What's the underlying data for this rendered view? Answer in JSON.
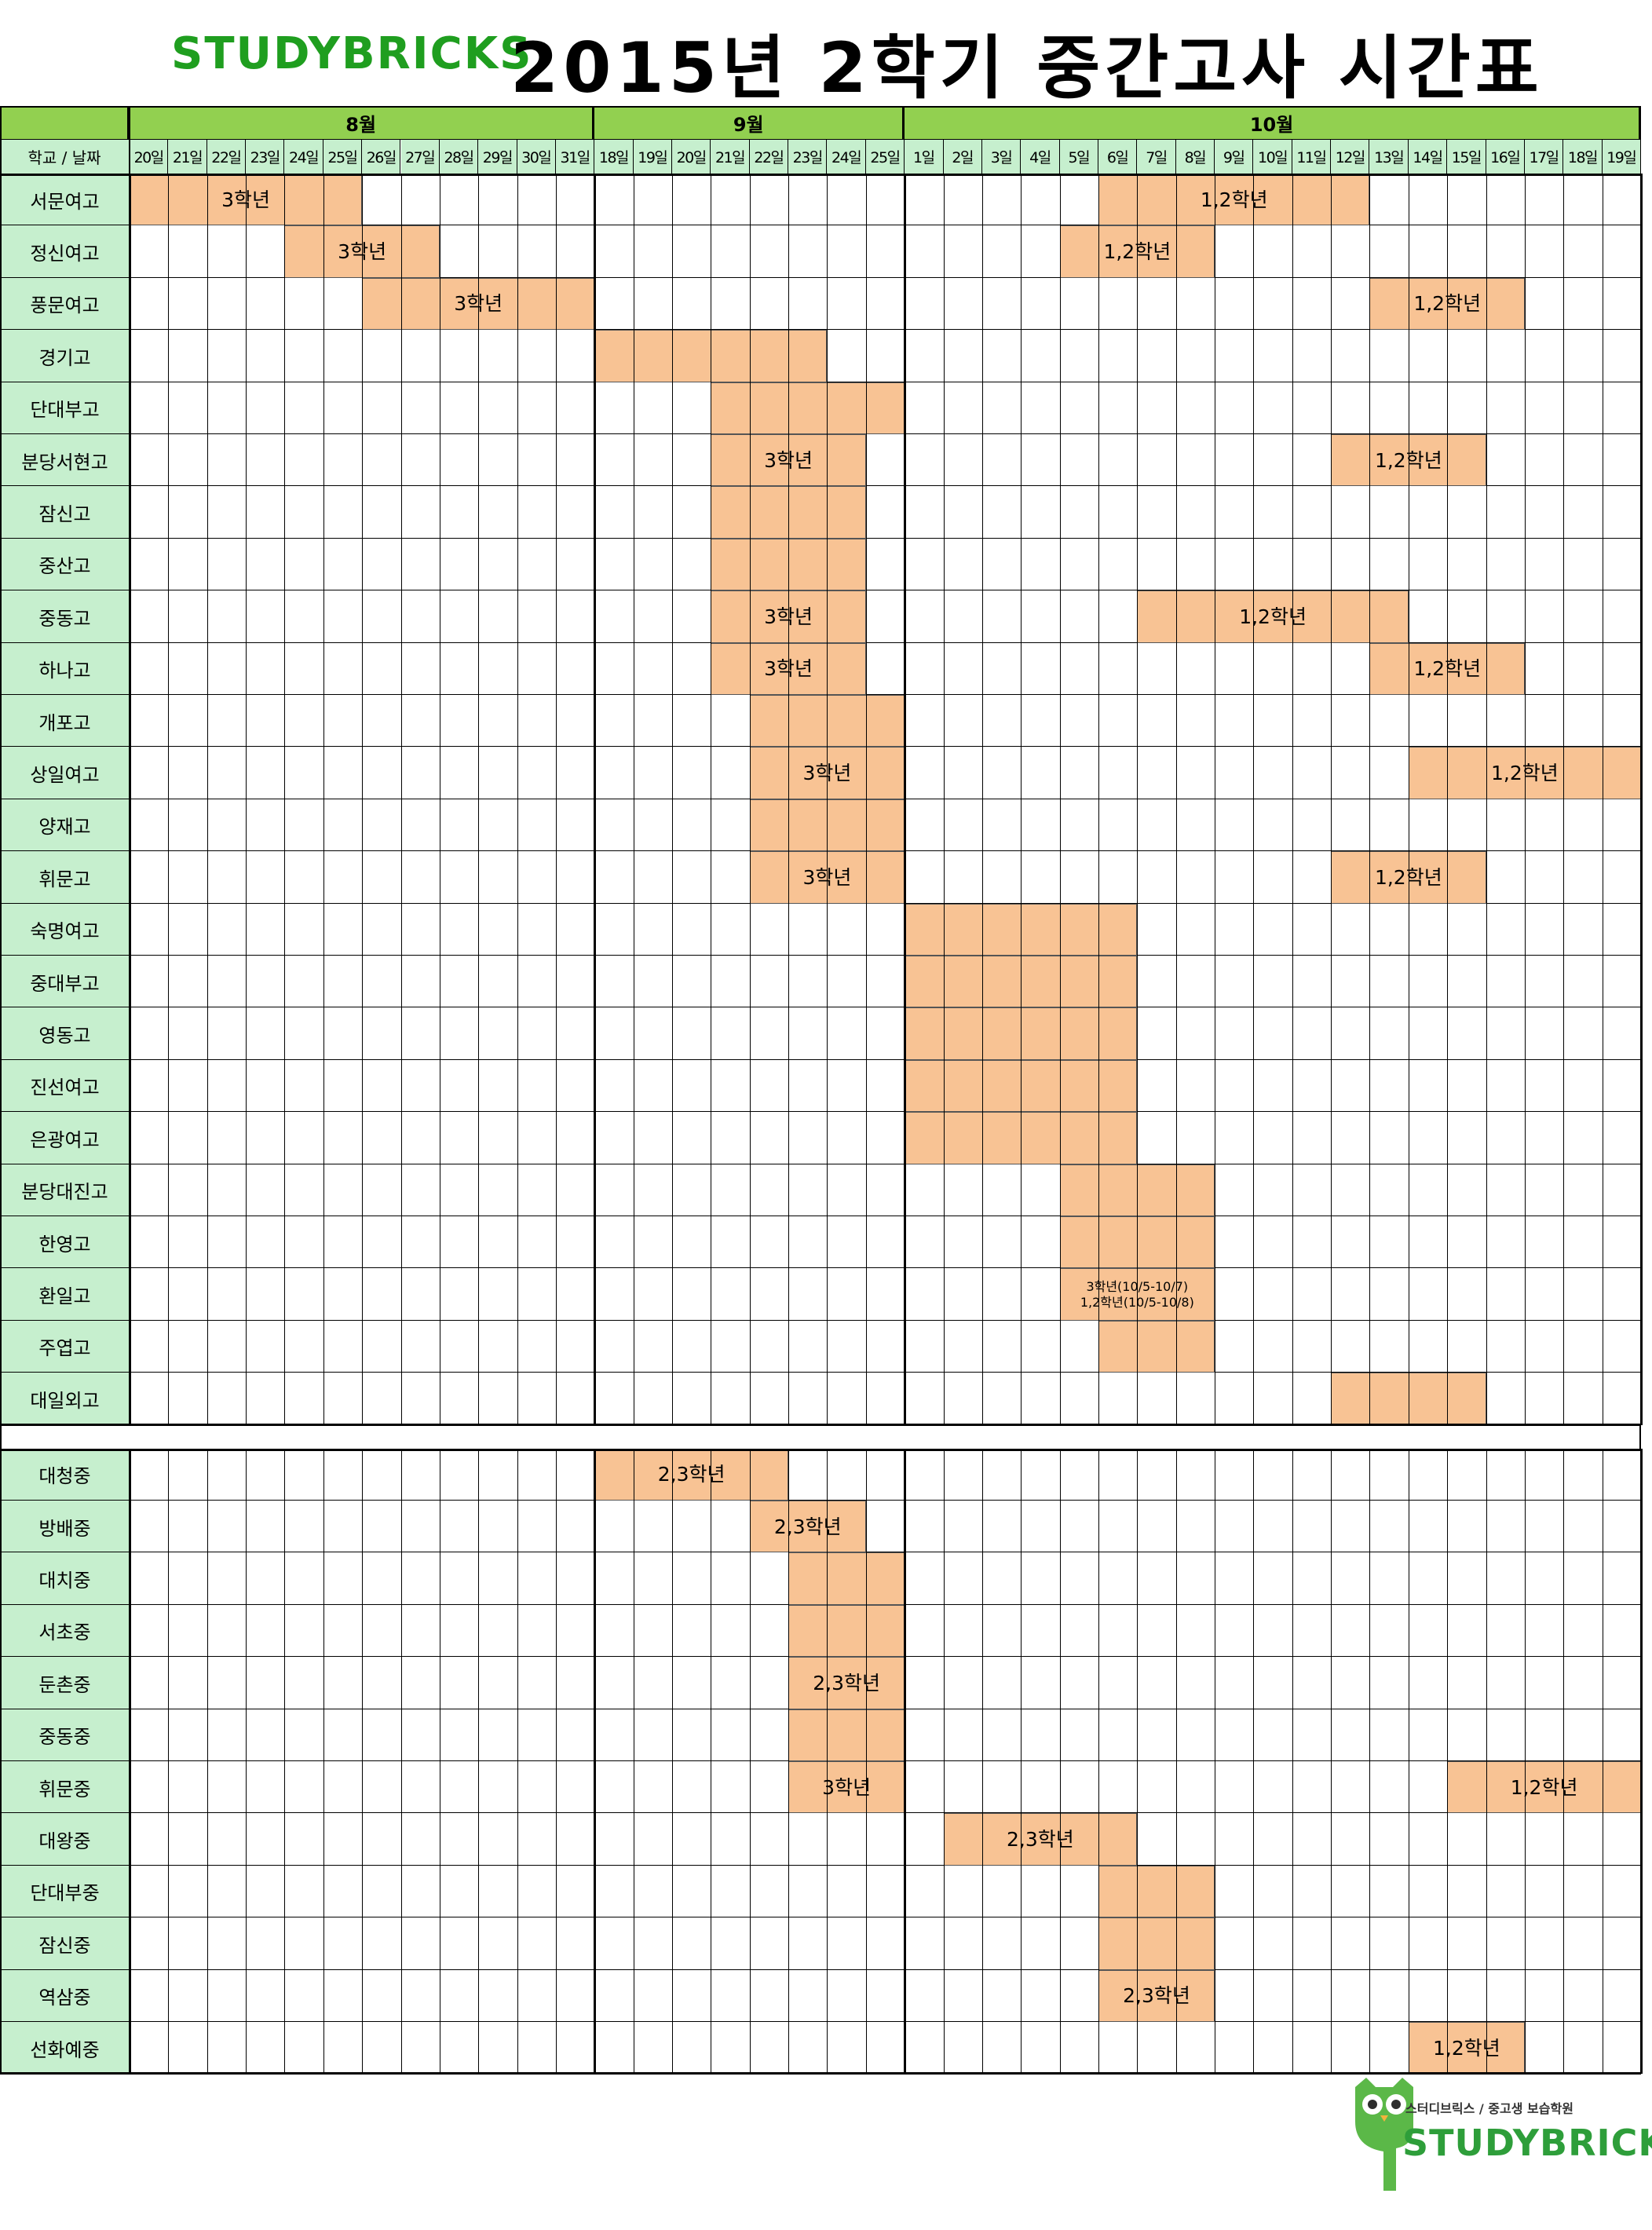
{
  "header": {
    "brand": "STUDYBRICKS",
    "title": "2015년 2학기 중간고사 시간표"
  },
  "corner_label": "학교 / 날짜",
  "months": [
    {
      "label": "8월",
      "days": [
        "20일",
        "21일",
        "22일",
        "23일",
        "24일",
        "25일",
        "26일",
        "27일",
        "28일",
        "29일",
        "30일",
        "31일"
      ]
    },
    {
      "label": "9월",
      "days": [
        "18일",
        "19일",
        "20일",
        "21일",
        "22일",
        "23일",
        "24일",
        "25일"
      ]
    },
    {
      "label": "10월",
      "days": [
        "1일",
        "2일",
        "3일",
        "4일",
        "5일",
        "6일",
        "7일",
        "8일",
        "9일",
        "10일",
        "11일",
        "12일",
        "13일",
        "14일",
        "15일",
        "16일",
        "17일",
        "18일",
        "19일"
      ]
    }
  ],
  "high_schools": [
    {
      "name": "서문여고",
      "exams": [
        {
          "start": 0,
          "span": 6,
          "label": "3학년"
        },
        {
          "start": 25,
          "span": 7,
          "label": "1,2학년"
        }
      ]
    },
    {
      "name": "정신여고",
      "exams": [
        {
          "start": 4,
          "span": 4,
          "label": "3학년"
        },
        {
          "start": 24,
          "span": 4,
          "label": "1,2학년"
        }
      ]
    },
    {
      "name": "풍문여고",
      "exams": [
        {
          "start": 6,
          "span": 6,
          "label": "3학년"
        },
        {
          "start": 32,
          "span": 4,
          "label": "1,2학년"
        }
      ]
    },
    {
      "name": "경기고",
      "exams": [
        {
          "start": 12,
          "span": 6,
          "label": ""
        }
      ]
    },
    {
      "name": "단대부고",
      "exams": [
        {
          "start": 15,
          "span": 5,
          "label": ""
        }
      ]
    },
    {
      "name": "분당서현고",
      "exams": [
        {
          "start": 15,
          "span": 4,
          "label": "3학년"
        },
        {
          "start": 31,
          "span": 4,
          "label": "1,2학년"
        }
      ]
    },
    {
      "name": "잠신고",
      "exams": [
        {
          "start": 15,
          "span": 4,
          "label": ""
        }
      ]
    },
    {
      "name": "중산고",
      "exams": [
        {
          "start": 15,
          "span": 4,
          "label": ""
        }
      ]
    },
    {
      "name": "중동고",
      "exams": [
        {
          "start": 15,
          "span": 4,
          "label": "3학년"
        },
        {
          "start": 26,
          "span": 7,
          "label": "1,2학년"
        }
      ]
    },
    {
      "name": "하나고",
      "exams": [
        {
          "start": 15,
          "span": 4,
          "label": "3학년"
        },
        {
          "start": 32,
          "span": 4,
          "label": "1,2학년"
        }
      ]
    },
    {
      "name": "개포고",
      "exams": [
        {
          "start": 16,
          "span": 4,
          "label": ""
        }
      ]
    },
    {
      "name": "상일여고",
      "exams": [
        {
          "start": 16,
          "span": 4,
          "label": "3학년"
        },
        {
          "start": 33,
          "span": 6,
          "label": "1,2학년"
        }
      ]
    },
    {
      "name": "양재고",
      "exams": [
        {
          "start": 16,
          "span": 4,
          "label": ""
        }
      ]
    },
    {
      "name": "휘문고",
      "exams": [
        {
          "start": 16,
          "span": 4,
          "label": "3학년"
        },
        {
          "start": 31,
          "span": 4,
          "label": "1,2학년"
        }
      ]
    },
    {
      "name": "숙명여고",
      "exams": [
        {
          "start": 20,
          "span": 6,
          "label": ""
        }
      ]
    },
    {
      "name": "중대부고",
      "exams": [
        {
          "start": 20,
          "span": 6,
          "label": ""
        }
      ]
    },
    {
      "name": "영동고",
      "exams": [
        {
          "start": 20,
          "span": 6,
          "label": ""
        }
      ]
    },
    {
      "name": "진선여고",
      "exams": [
        {
          "start": 20,
          "span": 6,
          "label": ""
        }
      ]
    },
    {
      "name": "은광여고",
      "exams": [
        {
          "start": 20,
          "span": 6,
          "label": ""
        }
      ]
    },
    {
      "name": "분당대진고",
      "exams": [
        {
          "start": 24,
          "span": 4,
          "label": ""
        }
      ]
    },
    {
      "name": "한영고",
      "exams": [
        {
          "start": 24,
          "span": 4,
          "label": ""
        }
      ]
    },
    {
      "name": "환일고",
      "exams": [
        {
          "start": 24,
          "span": 4,
          "label": "3학년(10/5-10/7)\n1,2학년(10/5-10/8)",
          "small": true
        }
      ]
    },
    {
      "name": "주엽고",
      "exams": [
        {
          "start": 25,
          "span": 3,
          "label": ""
        }
      ]
    },
    {
      "name": "대일외고",
      "exams": [
        {
          "start": 31,
          "span": 4,
          "label": ""
        }
      ]
    }
  ],
  "middle_schools": [
    {
      "name": "대청중",
      "exams": [
        {
          "start": 12,
          "span": 5,
          "label": "2,3학년"
        }
      ]
    },
    {
      "name": "방배중",
      "exams": [
        {
          "start": 16,
          "span": 3,
          "label": "2,3학년"
        }
      ]
    },
    {
      "name": "대치중",
      "exams": [
        {
          "start": 17,
          "span": 3,
          "label": ""
        }
      ]
    },
    {
      "name": "서초중",
      "exams": [
        {
          "start": 17,
          "span": 3,
          "label": ""
        }
      ]
    },
    {
      "name": "둔촌중",
      "exams": [
        {
          "start": 17,
          "span": 3,
          "label": "2,3학년"
        }
      ]
    },
    {
      "name": "중동중",
      "exams": [
        {
          "start": 17,
          "span": 3,
          "label": ""
        }
      ]
    },
    {
      "name": "휘문중",
      "exams": [
        {
          "start": 17,
          "span": 3,
          "label": "3학년"
        },
        {
          "start": 34,
          "span": 5,
          "label": "1,2학년"
        }
      ]
    },
    {
      "name": "대왕중",
      "exams": [
        {
          "start": 21,
          "span": 5,
          "label": "2,3학년"
        }
      ]
    },
    {
      "name": "단대부중",
      "exams": [
        {
          "start": 25,
          "span": 3,
          "label": ""
        }
      ]
    },
    {
      "name": "잠신중",
      "exams": [
        {
          "start": 25,
          "span": 3,
          "label": ""
        }
      ]
    },
    {
      "name": "역삼중",
      "exams": [
        {
          "start": 25,
          "span": 3,
          "label": "2,3학년"
        }
      ]
    },
    {
      "name": "선화예중",
      "exams": [
        {
          "start": 33,
          "span": 3,
          "label": "1,2학년"
        }
      ]
    }
  ],
  "footer": {
    "subtitle": "스터디브릭스 / 중고생 보습학원",
    "brand": "STUDYBRICKS",
    "logo_icon": "owl-icon"
  },
  "colors": {
    "brand_green": "#1f9e1f",
    "month_header": "#92d050",
    "day_header": "#c6efce",
    "exam_fill": "#f8c394"
  }
}
